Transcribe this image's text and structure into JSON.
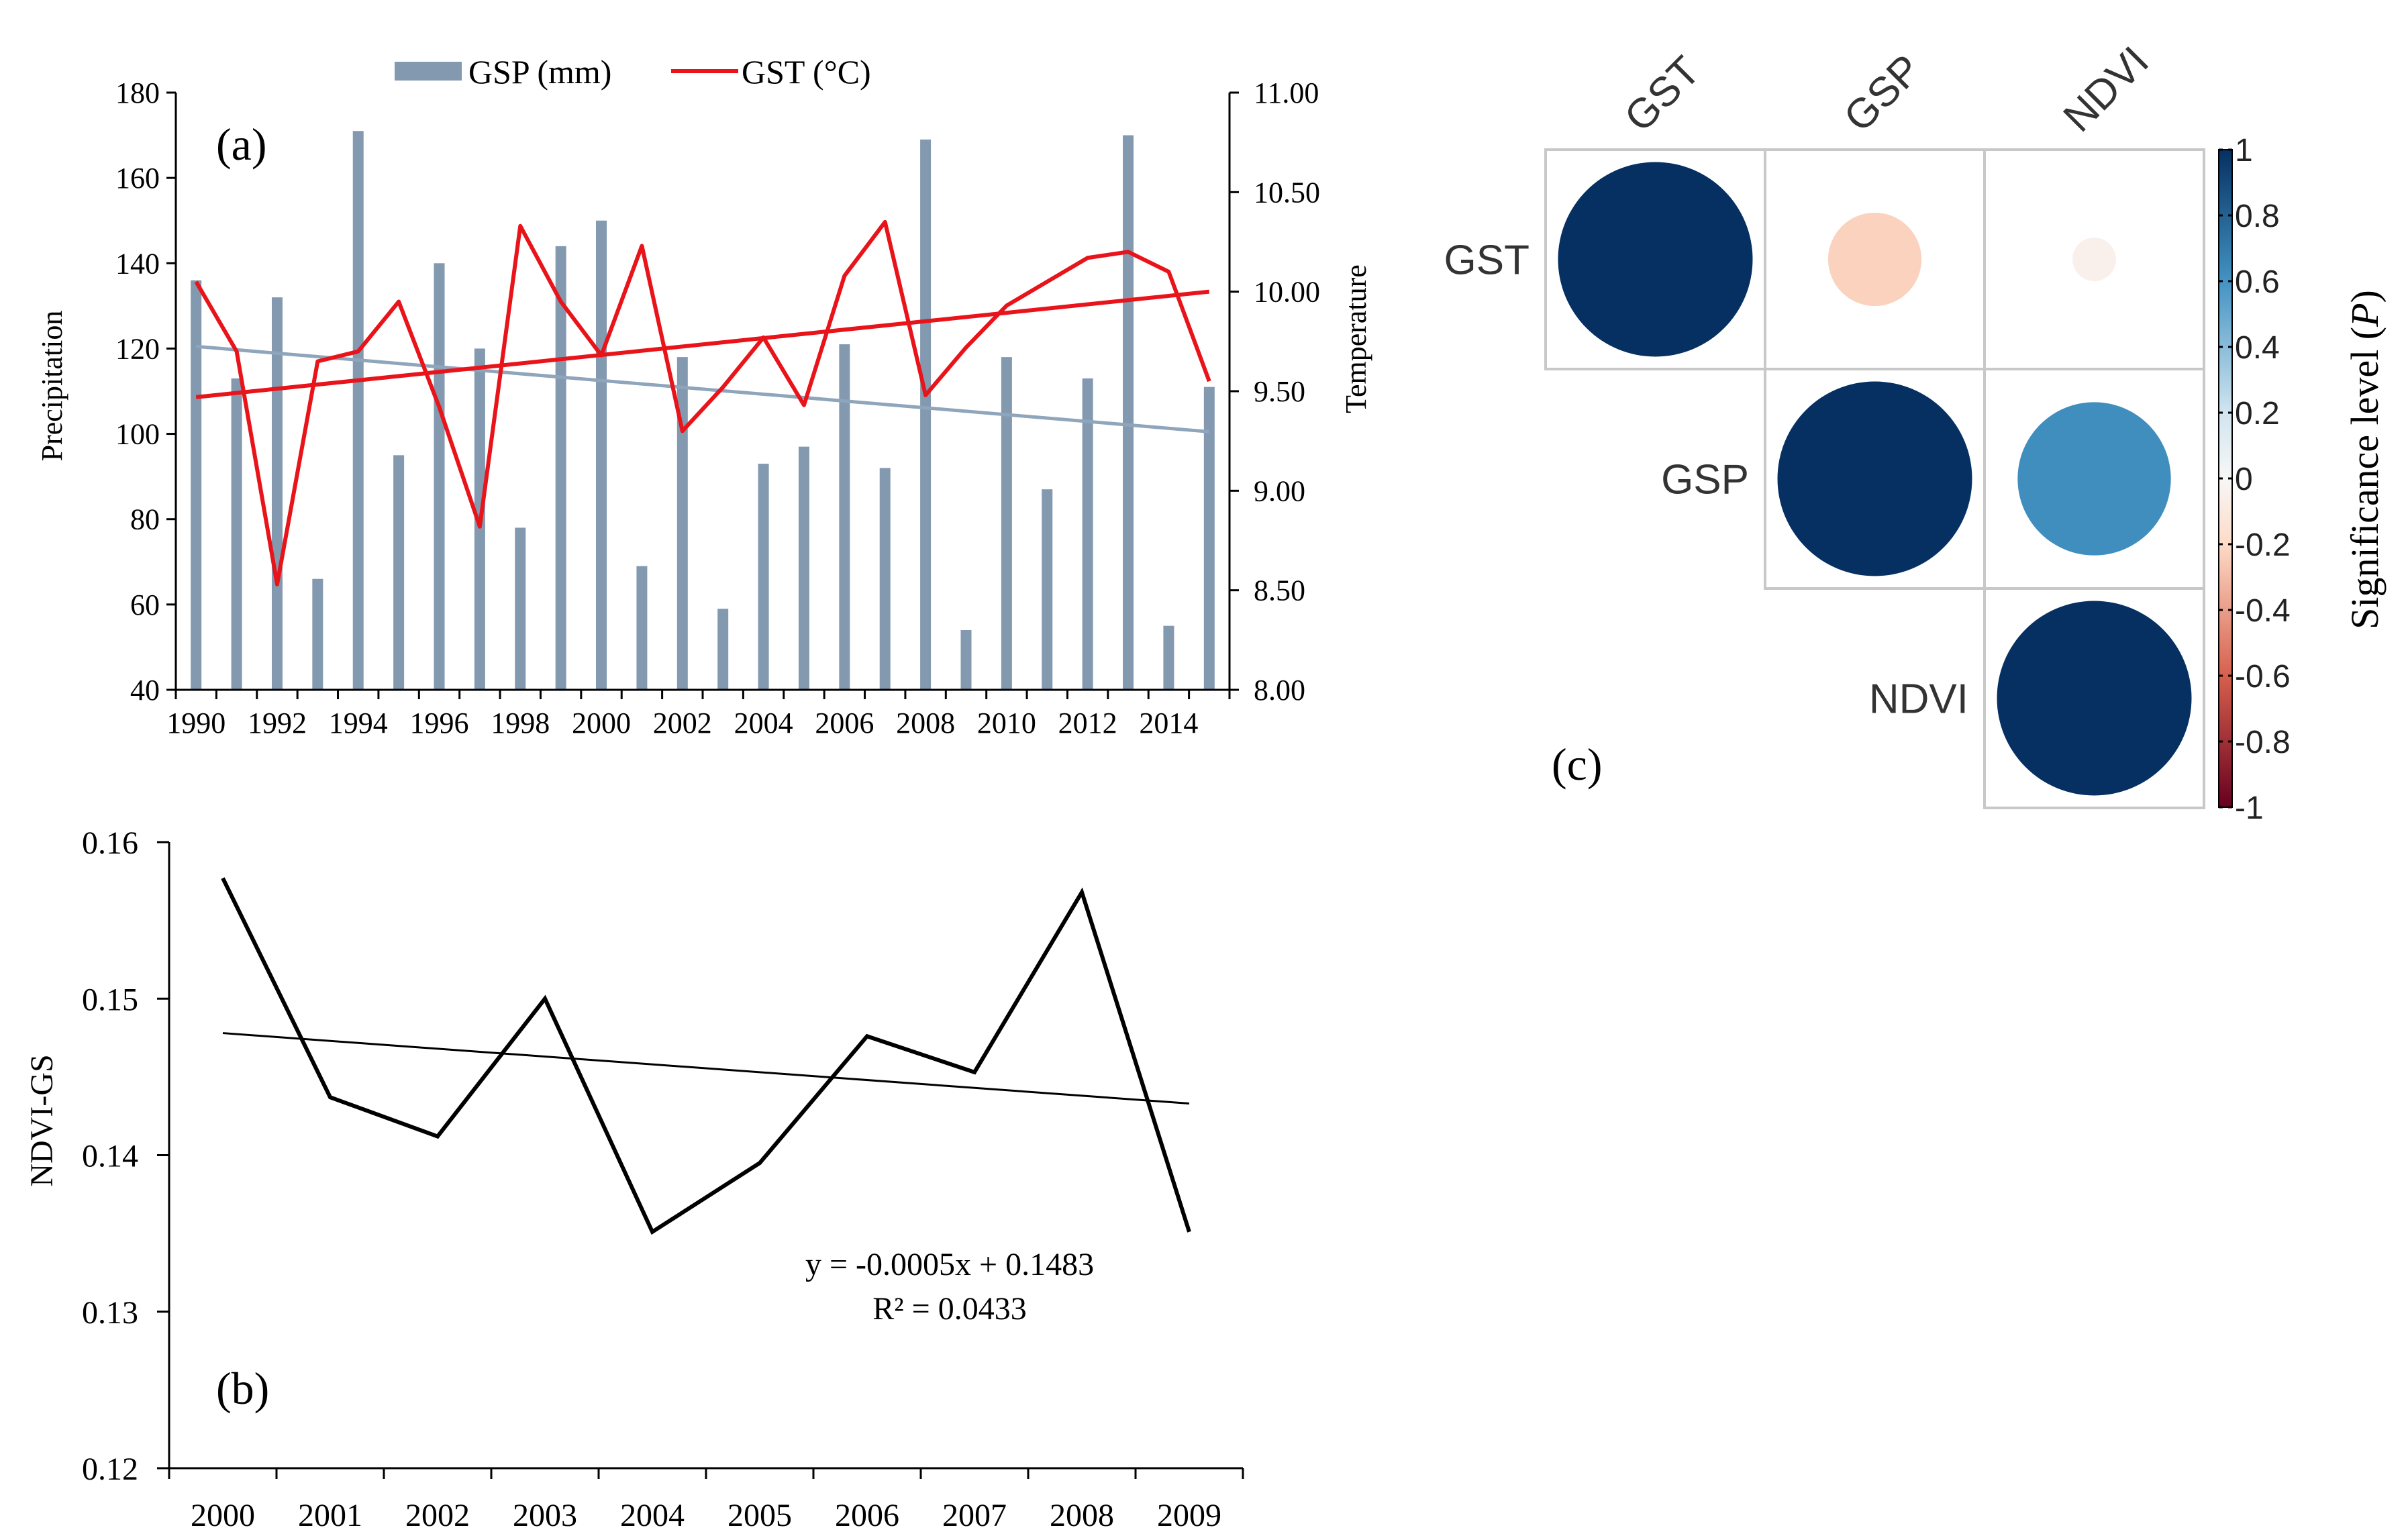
{
  "chart_data": [
    {
      "id": "a",
      "type": "bar+line",
      "panel_label": "(a)",
      "title": "",
      "xlabel": "",
      "ylabel_left": "Precipitation",
      "ylabel_right": "Temperature",
      "ylim_left": [
        40,
        180
      ],
      "ylim_right": [
        8.0,
        11.0
      ],
      "yticks_left": [
        "40",
        "60",
        "80",
        "100",
        "120",
        "140",
        "160",
        "180"
      ],
      "yticks_right": [
        "8.00",
        "8.50",
        "9.00",
        "9.50",
        "10.00",
        "10.50",
        "11.00"
      ],
      "xticks": [
        "1990",
        "1992",
        "1994",
        "1996",
        "1998",
        "2000",
        "2002",
        "2004",
        "2006",
        "2008",
        "2010",
        "2012",
        "2014"
      ],
      "x": [
        1990,
        1991,
        1992,
        1993,
        1994,
        1995,
        1996,
        1997,
        1998,
        1999,
        2000,
        2001,
        2002,
        2003,
        2004,
        2005,
        2006,
        2007,
        2008,
        2009,
        2010,
        2011,
        2012,
        2013,
        2014,
        2015
      ],
      "series": [
        {
          "name": "GSP (mm)",
          "type": "bar",
          "axis": "left",
          "color": "#8299b0",
          "values": [
            136,
            113,
            132,
            66,
            171,
            95,
            140,
            120,
            78,
            144,
            150,
            69,
            118,
            59,
            93,
            97,
            121,
            92,
            169,
            54,
            118,
            87,
            113,
            170,
            55,
            111
          ]
        },
        {
          "name": "GST (°C)",
          "type": "line",
          "axis": "right",
          "color": "#e8141a",
          "values": [
            10.05,
            9.7,
            8.53,
            9.65,
            9.7,
            9.95,
            9.42,
            8.82,
            10.33,
            9.95,
            9.68,
            10.23,
            9.3,
            9.52,
            9.77,
            9.43,
            10.08,
            10.35,
            9.48,
            9.72,
            9.93,
            10.05,
            10.17,
            10.2,
            10.1,
            9.55
          ]
        }
      ],
      "trendlines": [
        {
          "series": "GSP (mm)",
          "axis": "left",
          "color": "#8fa5bb",
          "from": [
            1990,
            120.5
          ],
          "to": [
            2015,
            100.5
          ]
        },
        {
          "series": "GST (°C)",
          "axis": "right",
          "color": "#e8141a",
          "from": [
            1990,
            9.47
          ],
          "to": [
            2015,
            10.0
          ]
        }
      ],
      "legend_position": "top-center"
    },
    {
      "id": "b",
      "type": "line",
      "panel_label": "(b)",
      "title": "",
      "xlabel": "",
      "ylabel": "NDVI-GS",
      "ylim": [
        0.12,
        0.16
      ],
      "yticks": [
        "0.12",
        "0.13",
        "0.14",
        "0.15",
        "0.16"
      ],
      "categories": [
        "2000",
        "2001",
        "2002",
        "2003",
        "2004",
        "2005",
        "2006",
        "2007",
        "2008",
        "2009"
      ],
      "series": [
        {
          "name": "NDVI-GS",
          "color": "#000000",
          "values": [
            0.1577,
            0.1437,
            0.1412,
            0.15,
            0.1351,
            0.1395,
            0.1476,
            0.1453,
            0.1568,
            0.1351
          ]
        }
      ],
      "trendline": {
        "slope": -0.0005,
        "intercept": 0.1483
      },
      "annotations": [
        "y = -0.0005x + 0.1483",
        "R² = 0.0433"
      ]
    },
    {
      "id": "c",
      "type": "heatmap",
      "panel_label": "(c)",
      "title": "",
      "variables": [
        "GST",
        "GSP",
        "NDVI"
      ],
      "cells": [
        {
          "row": "GST",
          "col": "GST",
          "value": 1.0
        },
        {
          "row": "GST",
          "col": "GSP",
          "value": -0.23
        },
        {
          "row": "GST",
          "col": "NDVI",
          "value": -0.05
        },
        {
          "row": "GSP",
          "col": "GSP",
          "value": 1.0
        },
        {
          "row": "GSP",
          "col": "NDVI",
          "value": 0.62
        },
        {
          "row": "NDVI",
          "col": "NDVI",
          "value": 1.0
        }
      ],
      "colorbar": {
        "label": "Significance  level (",
        "label_p": "P",
        "label_close": ")",
        "range": [
          -1,
          1
        ],
        "ticks": [
          "1",
          "0.8",
          "0.6",
          "0.4",
          "0.2",
          "0",
          "-0.2",
          "-0.4",
          "-0.6",
          "-0.8",
          "-1"
        ],
        "colors": {
          "neg_dark": "#67001f",
          "neg_mid": "#d6604d",
          "neg_light": "#fddbc7",
          "zero": "#f7f7f7",
          "pos_light": "#d1e5f0",
          "pos_mid": "#4393c3",
          "pos_dark": "#053061"
        }
      }
    }
  ]
}
